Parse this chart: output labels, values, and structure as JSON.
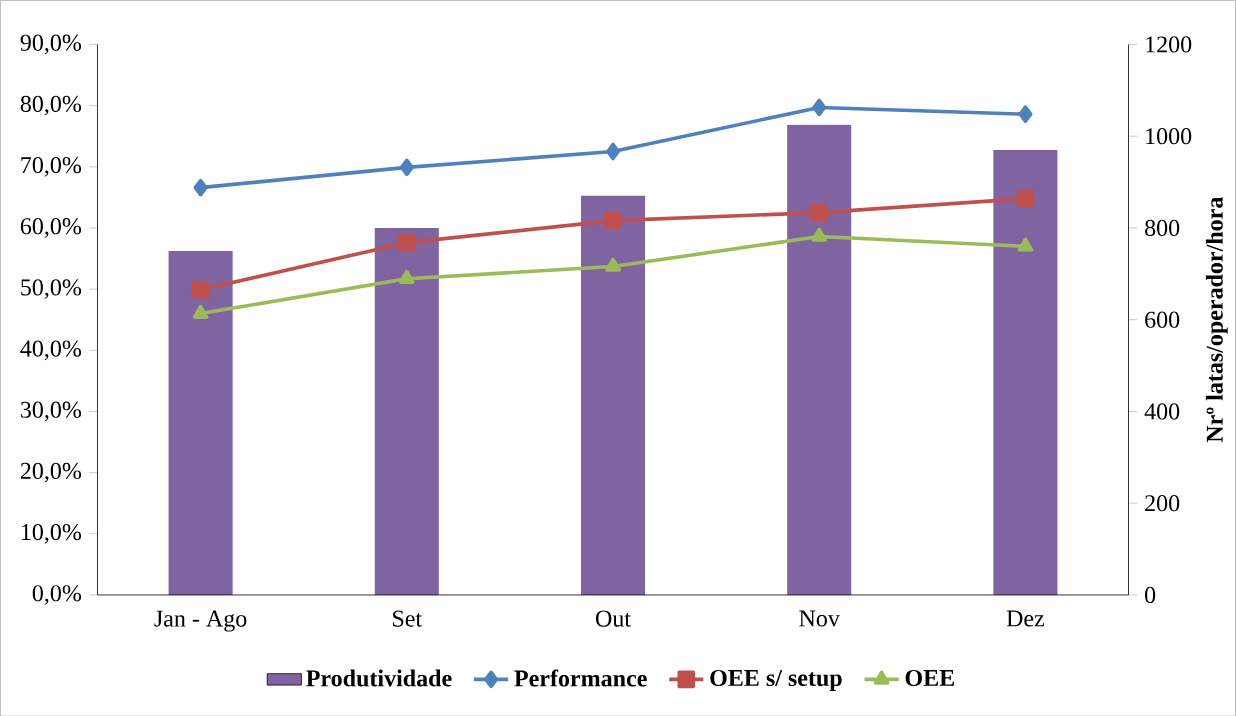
{
  "chart_data": {
    "type": "line",
    "categories": [
      "Jan - Ago",
      "Set",
      "Out",
      "Nov",
      "Dez"
    ],
    "ylim": [
      0,
      90
    ],
    "yticks": [
      {
        "value": 0,
        "label": "0,0%"
      },
      {
        "value": 10,
        "label": "10,0%"
      },
      {
        "value": 20,
        "label": "20,0%"
      },
      {
        "value": 30,
        "label": "30,0%"
      },
      {
        "value": 40,
        "label": "40,0%"
      },
      {
        "value": 50,
        "label": "50,0%"
      },
      {
        "value": 60,
        "label": "60,0%"
      },
      {
        "value": 70,
        "label": "70,0%"
      },
      {
        "value": 80,
        "label": "80,0%"
      },
      {
        "value": 90,
        "label": "90,0%"
      }
    ],
    "y2lim": [
      0,
      1200
    ],
    "y2ticks": [
      0,
      200,
      400,
      600,
      800,
      1000,
      1200
    ],
    "y2label": "Nrº latas/operador/hora",
    "legend": "bottom",
    "grid": false,
    "series": [
      {
        "name": "Produtividade",
        "type": "bar",
        "axis": "y2",
        "color": "#8064a2",
        "values": [
          750,
          800,
          870,
          1025,
          970
        ]
      },
      {
        "name": "Performance",
        "color": "#4f81bd",
        "marker": "diamond",
        "values": [
          66.6,
          69.9,
          72.5,
          79.7,
          78.6
        ]
      },
      {
        "name": "OEE s/ setup",
        "color": "#c0504d",
        "marker": "square",
        "values": [
          49.9,
          57.6,
          61.2,
          62.5,
          64.8
        ]
      },
      {
        "name": "OEE",
        "color": "#9bbb59",
        "marker": "triangle",
        "values": [
          46.0,
          51.7,
          53.7,
          58.6,
          57.0
        ]
      }
    ]
  }
}
